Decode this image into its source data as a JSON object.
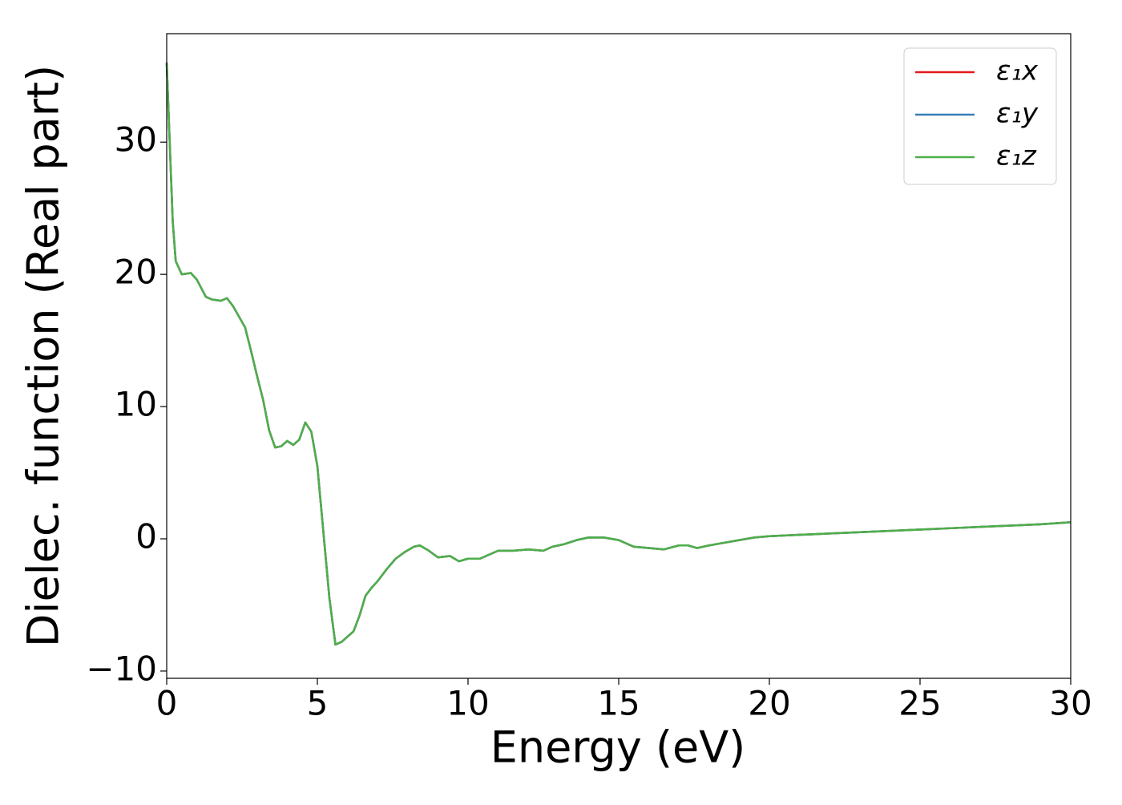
{
  "chart_data": {
    "type": "line",
    "x_label": "Energy (eV)",
    "y_label": "Dielec. function (Real part)",
    "x": [
      0,
      0.1,
      0.2,
      0.3,
      0.5,
      0.8,
      1.0,
      1.3,
      1.5,
      1.8,
      2.0,
      2.2,
      2.4,
      2.6,
      2.8,
      3.0,
      3.2,
      3.4,
      3.6,
      3.8,
      4.0,
      4.2,
      4.4,
      4.6,
      4.8,
      5.0,
      5.2,
      5.4,
      5.6,
      5.8,
      6.0,
      6.2,
      6.4,
      6.6,
      6.8,
      7.0,
      7.3,
      7.6,
      7.9,
      8.2,
      8.4,
      8.7,
      9.0,
      9.4,
      9.7,
      10.0,
      10.4,
      10.8,
      11.0,
      11.5,
      12.0,
      12.5,
      12.8,
      13.2,
      13.6,
      14.0,
      14.5,
      15.0,
      15.5,
      16.0,
      16.5,
      17.0,
      17.3,
      17.6,
      18.0,
      18.5,
      19.0,
      19.5,
      20,
      21,
      22,
      23,
      24,
      25,
      26,
      27,
      28,
      29,
      30
    ],
    "series": [
      {
        "name": "ε₁x",
        "color": "#e41a1c",
        "values": [
          36,
          30,
          24,
          21,
          20,
          20.1,
          19.6,
          18.3,
          18.1,
          18.0,
          18.2,
          17.6,
          16.8,
          16.0,
          14.2,
          12.3,
          10.5,
          8.2,
          6.9,
          7.0,
          7.4,
          7.1,
          7.5,
          8.8,
          8.1,
          5.5,
          0.5,
          -4.5,
          -8.0,
          -7.8,
          -7.4,
          -7.0,
          -5.8,
          -4.3,
          -3.7,
          -3.2,
          -2.3,
          -1.5,
          -1.0,
          -0.6,
          -0.5,
          -0.9,
          -1.4,
          -1.3,
          -1.7,
          -1.5,
          -1.5,
          -1.1,
          -0.9,
          -0.9,
          -0.8,
          -0.9,
          -0.6,
          -0.4,
          -0.1,
          0.1,
          0.1,
          -0.1,
          -0.6,
          -0.7,
          -0.8,
          -0.5,
          -0.5,
          -0.7,
          -0.5,
          -0.3,
          -0.1,
          0.1,
          0.2,
          0.3,
          0.4,
          0.5,
          0.6,
          0.7,
          0.8,
          0.9,
          1.0,
          1.1,
          1.25
        ]
      },
      {
        "name": "ε₁y",
        "color": "#377eb8",
        "values": [
          36,
          30,
          24,
          21,
          20,
          20.1,
          19.6,
          18.3,
          18.1,
          18.0,
          18.2,
          17.6,
          16.8,
          16.0,
          14.2,
          12.3,
          10.5,
          8.2,
          6.9,
          7.0,
          7.4,
          7.1,
          7.5,
          8.8,
          8.1,
          5.5,
          0.5,
          -4.5,
          -8.0,
          -7.8,
          -7.4,
          -7.0,
          -5.8,
          -4.3,
          -3.7,
          -3.2,
          -2.3,
          -1.5,
          -1.0,
          -0.6,
          -0.5,
          -0.9,
          -1.4,
          -1.3,
          -1.7,
          -1.5,
          -1.5,
          -1.1,
          -0.9,
          -0.9,
          -0.8,
          -0.9,
          -0.6,
          -0.4,
          -0.1,
          0.1,
          0.1,
          -0.1,
          -0.6,
          -0.7,
          -0.8,
          -0.5,
          -0.5,
          -0.7,
          -0.5,
          -0.3,
          -0.1,
          0.1,
          0.2,
          0.3,
          0.4,
          0.5,
          0.6,
          0.7,
          0.8,
          0.9,
          1.0,
          1.1,
          1.25
        ]
      },
      {
        "name": "ε₁z",
        "color": "#4daf4a",
        "values": [
          36,
          30,
          24,
          21,
          20,
          20.1,
          19.6,
          18.3,
          18.1,
          18.0,
          18.2,
          17.6,
          16.8,
          16.0,
          14.2,
          12.3,
          10.5,
          8.2,
          6.9,
          7.0,
          7.4,
          7.1,
          7.5,
          8.8,
          8.1,
          5.5,
          0.5,
          -4.5,
          -8.0,
          -7.8,
          -7.4,
          -7.0,
          -5.8,
          -4.3,
          -3.7,
          -3.2,
          -2.3,
          -1.5,
          -1.0,
          -0.6,
          -0.5,
          -0.9,
          -1.4,
          -1.3,
          -1.7,
          -1.5,
          -1.5,
          -1.1,
          -0.9,
          -0.9,
          -0.8,
          -0.9,
          -0.6,
          -0.4,
          -0.1,
          0.1,
          0.1,
          -0.1,
          -0.6,
          -0.7,
          -0.8,
          -0.5,
          -0.5,
          -0.7,
          -0.5,
          -0.3,
          -0.1,
          0.1,
          0.2,
          0.3,
          0.4,
          0.5,
          0.6,
          0.7,
          0.8,
          0.9,
          1.0,
          1.1,
          1.25
        ]
      }
    ],
    "xlim": [
      0,
      30
    ],
    "xticks": [
      0,
      5,
      10,
      15,
      20,
      25,
      30
    ],
    "ylim": [
      -10.55,
      38.2
    ],
    "yticks": [
      {
        "value": -10,
        "label": "−10"
      },
      0,
      10,
      20,
      30
    ],
    "legend": "upper right"
  }
}
